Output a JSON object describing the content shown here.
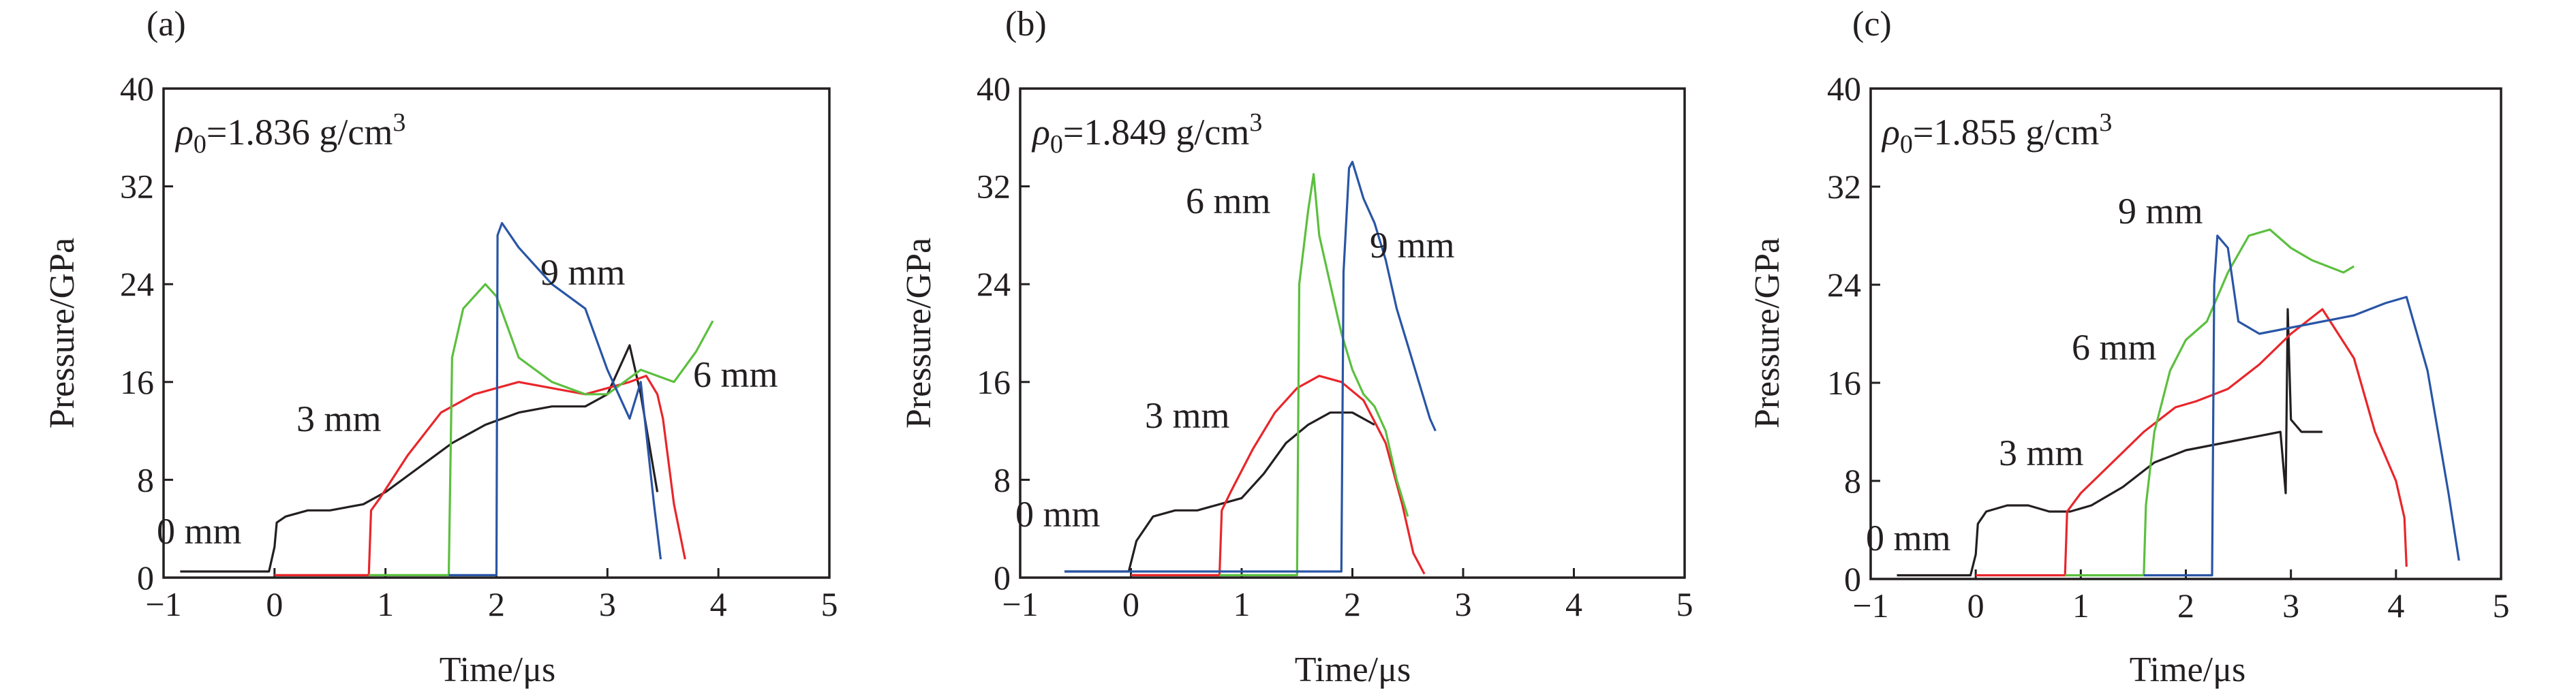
{
  "figure": {
    "panels": [
      {
        "label": "(a)",
        "rho_symbol": "ρ",
        "rho_sub": "0",
        "rho_value": "=1.836 g/cm",
        "rho_sup": "3"
      },
      {
        "label": "(b)",
        "rho_symbol": "ρ",
        "rho_sub": "0",
        "rho_value": "=1.849 g/cm",
        "rho_sup": "3"
      },
      {
        "label": "(c)",
        "rho_symbol": "ρ",
        "rho_sub": "0",
        "rho_value": "=1.855 g/cm",
        "rho_sup": "3"
      }
    ]
  },
  "chart_data": [
    {
      "type": "line",
      "title": "",
      "xlabel": "Time/μs",
      "ylabel": "Pressure/GPa",
      "xlim": [
        -1,
        5
      ],
      "ylim": [
        0,
        40
      ],
      "xticks": [
        -1,
        0,
        1,
        2,
        3,
        4,
        5
      ],
      "yticks": [
        0,
        8,
        16,
        24,
        32,
        40
      ],
      "grid": false,
      "series": [
        {
          "name": "0 mm",
          "color": "#231f20",
          "x": [
            -0.85,
            -0.4,
            -0.05,
            0,
            0.02,
            0.1,
            0.3,
            0.5,
            0.8,
            1.0,
            1.3,
            1.6,
            1.9,
            2.2,
            2.5,
            2.8,
            3.0,
            3.15,
            3.2,
            3.3,
            3.45
          ],
          "y": [
            0.5,
            0.5,
            0.5,
            2.5,
            4.5,
            5.0,
            5.5,
            5.5,
            6.0,
            7.0,
            9.0,
            11.0,
            12.5,
            13.5,
            14.0,
            14.0,
            15.0,
            18.0,
            19.0,
            15.0,
            7.0
          ]
        },
        {
          "name": "3 mm",
          "color": "#e8262b",
          "x": [
            0,
            0.85,
            0.87,
            0.95,
            1.2,
            1.5,
            1.8,
            2.0,
            2.2,
            2.5,
            2.8,
            3.0,
            3.2,
            3.35,
            3.45,
            3.5,
            3.6,
            3.7
          ],
          "y": [
            0.2,
            0.2,
            5.5,
            6.5,
            10.0,
            13.5,
            15.0,
            15.5,
            16.0,
            15.5,
            15.0,
            15.5,
            16.0,
            16.5,
            15.0,
            13.0,
            6.0,
            1.5
          ]
        },
        {
          "name": "6 mm",
          "color": "#5cbf3f",
          "x": [
            0.85,
            1.57,
            1.6,
            1.7,
            1.9,
            2.0,
            2.2,
            2.5,
            2.8,
            3.0,
            3.3,
            3.6,
            3.8,
            3.95
          ],
          "y": [
            0.2,
            0.2,
            18.0,
            22.0,
            24.0,
            23.0,
            18.0,
            16.0,
            15.0,
            15.0,
            17.0,
            16.0,
            18.5,
            21.0
          ]
        },
        {
          "name": "9 mm",
          "color": "#2955a5",
          "x": [
            1.57,
            2.0,
            2.01,
            2.05,
            2.2,
            2.5,
            2.8,
            3.0,
            3.1,
            3.2,
            3.3,
            3.42,
            3.48
          ],
          "y": [
            0.2,
            0.2,
            28.0,
            29.0,
            27.0,
            24.0,
            22.0,
            17.0,
            15.0,
            13.0,
            16.0,
            6.0,
            1.5
          ]
        }
      ],
      "annotations": [
        "0 mm",
        "3 mm",
        "9 mm",
        "6 mm"
      ]
    },
    {
      "type": "line",
      "title": "",
      "xlabel": "Time/μs",
      "ylabel": "Pressure/GPa",
      "xlim": [
        -1,
        5
      ],
      "ylim": [
        0,
        40
      ],
      "xticks": [
        -1,
        0,
        1,
        2,
        3,
        4,
        5
      ],
      "yticks": [
        0,
        8,
        16,
        24,
        32,
        40
      ],
      "grid": false,
      "series": [
        {
          "name": "0 mm",
          "color": "#231f20",
          "x": [
            -0.6,
            -0.1,
            -0.02,
            0.05,
            0.2,
            0.4,
            0.6,
            0.8,
            1.0,
            1.2,
            1.4,
            1.6,
            1.8,
            2.0,
            2.2
          ],
          "y": [
            0.5,
            0.5,
            0.5,
            3.0,
            5.0,
            5.5,
            5.5,
            6.0,
            6.5,
            8.5,
            11.0,
            12.5,
            13.5,
            13.5,
            12.5
          ]
        },
        {
          "name": "3 mm",
          "color": "#e8262b",
          "x": [
            0,
            0.8,
            0.82,
            0.9,
            1.1,
            1.3,
            1.5,
            1.7,
            1.9,
            2.1,
            2.3,
            2.45,
            2.55,
            2.65
          ],
          "y": [
            0.2,
            0.2,
            5.5,
            7.0,
            10.5,
            13.5,
            15.5,
            16.5,
            16.0,
            14.5,
            11.0,
            6.0,
            2.0,
            0.3
          ]
        },
        {
          "name": "6 mm",
          "color": "#5cbf3f",
          "x": [
            0.8,
            1.5,
            1.52,
            1.6,
            1.65,
            1.7,
            1.8,
            1.9,
            2.0,
            2.1,
            2.2,
            2.3,
            2.4,
            2.5
          ],
          "y": [
            0.2,
            0.2,
            24.0,
            30.0,
            33.0,
            28.0,
            24.0,
            20.0,
            17.0,
            15.0,
            14.0,
            12.0,
            8.0,
            5.0
          ]
        },
        {
          "name": "9 mm",
          "color": "#2955a5",
          "x": [
            -0.6,
            1.9,
            1.92,
            1.97,
            2.0,
            2.1,
            2.2,
            2.3,
            2.4,
            2.5,
            2.6,
            2.7,
            2.75
          ],
          "y": [
            0.5,
            0.5,
            25.0,
            33.5,
            34.0,
            31.0,
            29.0,
            26.0,
            22.0,
            19.0,
            16.0,
            13.0,
            12.0
          ]
        }
      ],
      "annotations": [
        "0 mm",
        "6 mm",
        "9 mm",
        "3 mm"
      ]
    },
    {
      "type": "line",
      "title": "",
      "xlabel": "Time/μs",
      "ylabel": "Pressure/GPa",
      "xlim": [
        -1,
        5
      ],
      "ylim": [
        0,
        40
      ],
      "xticks": [
        -1,
        0,
        1,
        2,
        3,
        4,
        5
      ],
      "yticks": [
        0,
        8,
        16,
        24,
        32,
        40
      ],
      "grid": false,
      "series": [
        {
          "name": "0 mm",
          "color": "#231f20",
          "x": [
            -0.75,
            -0.3,
            -0.05,
            0,
            0.02,
            0.1,
            0.3,
            0.5,
            0.7,
            0.9,
            1.1,
            1.4,
            1.7,
            2.0,
            2.3,
            2.6,
            2.9,
            2.95,
            2.97,
            3.0,
            3.1,
            3.3
          ],
          "y": [
            0.3,
            0.3,
            0.3,
            2.0,
            4.5,
            5.5,
            6.0,
            6.0,
            5.5,
            5.5,
            6.0,
            7.5,
            9.5,
            10.5,
            11.0,
            11.5,
            12.0,
            7.0,
            22.0,
            13.0,
            12.0,
            12.0
          ]
        },
        {
          "name": "3 mm",
          "color": "#e8262b",
          "x": [
            0,
            0.85,
            0.87,
            1.0,
            1.3,
            1.6,
            1.9,
            2.1,
            2.4,
            2.7,
            3.0,
            3.3,
            3.6,
            3.8,
            4.0,
            4.08,
            4.1
          ],
          "y": [
            0.3,
            0.3,
            5.5,
            7.0,
            9.5,
            12.0,
            14.0,
            14.5,
            15.5,
            17.5,
            20.0,
            22.0,
            18.0,
            12.0,
            8.0,
            5.0,
            1.0
          ]
        },
        {
          "name": "6 mm",
          "color": "#5cbf3f",
          "x": [
            0.85,
            1.6,
            1.62,
            1.7,
            1.85,
            2.0,
            2.2,
            2.4,
            2.6,
            2.8,
            3.0,
            3.2,
            3.5,
            3.6
          ],
          "y": [
            0.3,
            0.3,
            6.0,
            12.0,
            17.0,
            19.5,
            21.0,
            25.0,
            28.0,
            28.5,
            27.0,
            26.0,
            25.0,
            25.5
          ]
        },
        {
          "name": "9 mm",
          "color": "#2955a5",
          "x": [
            1.6,
            2.25,
            2.27,
            2.3,
            2.4,
            2.5,
            2.7,
            3.0,
            3.3,
            3.6,
            3.9,
            4.1,
            4.3,
            4.4,
            4.5,
            4.6
          ],
          "y": [
            0.3,
            0.3,
            24.0,
            28.0,
            27.0,
            21.0,
            20.0,
            20.5,
            21.0,
            21.5,
            22.5,
            23.0,
            17.0,
            12.0,
            7.0,
            1.5
          ]
        }
      ],
      "annotations": [
        "9 mm",
        "6 mm",
        "3 mm",
        "0 mm"
      ]
    }
  ]
}
